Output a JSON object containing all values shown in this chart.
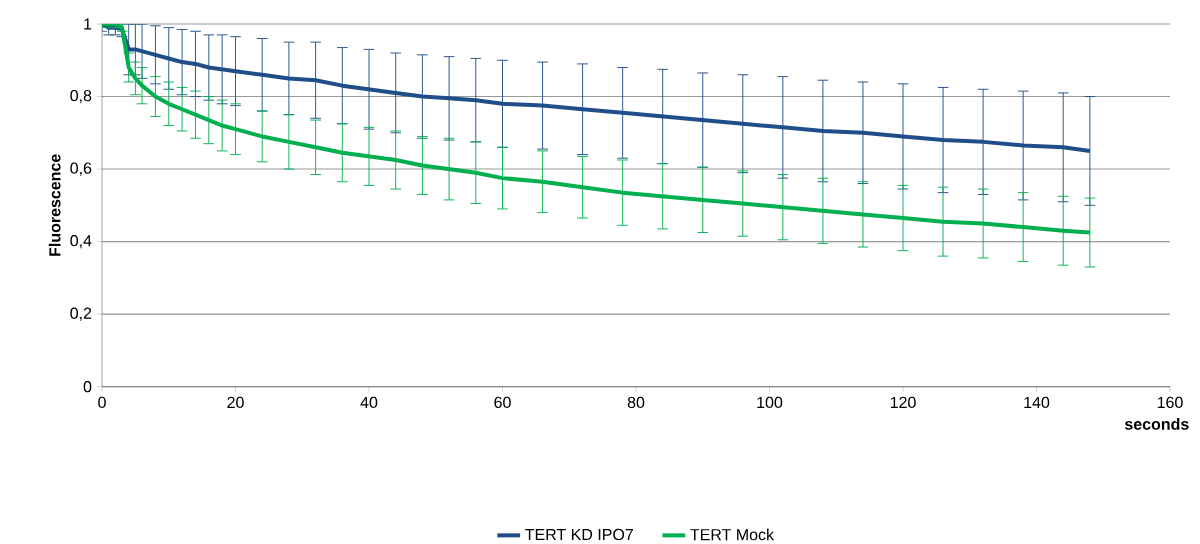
{
  "chart_data": {
    "type": "line",
    "xlabel": "seconds",
    "ylabel": "Fluorescence",
    "xlim": [
      0,
      160
    ],
    "ylim": [
      0,
      1
    ],
    "xticks": [
      0,
      20,
      40,
      60,
      80,
      100,
      120,
      140,
      160
    ],
    "yticks": [
      0,
      {
        "value": 0.2,
        "label": "0,2"
      },
      {
        "value": 0.4,
        "label": "0,4"
      },
      {
        "value": 0.6,
        "label": "0,6"
      },
      {
        "value": 0.8,
        "label": "0,8"
      },
      1
    ],
    "grid": "y",
    "legend": "bottom",
    "x": [
      0,
      1,
      2,
      3,
      4,
      5,
      6,
      8,
      10,
      12,
      14,
      16,
      18,
      20,
      24,
      28,
      32,
      36,
      40,
      44,
      48,
      52,
      56,
      60,
      66,
      72,
      78,
      84,
      90,
      96,
      102,
      108,
      114,
      120,
      126,
      132,
      138,
      144,
      148
    ],
    "series": [
      {
        "name": "TERT KD IPO7",
        "color": "#1f4e89",
        "values": [
          1,
          0.99,
          0.99,
          0.985,
          0.93,
          0.93,
          0.925,
          0.915,
          0.905,
          0.895,
          0.89,
          0.88,
          0.875,
          0.87,
          0.86,
          0.85,
          0.845,
          0.83,
          0.82,
          0.81,
          0.8,
          0.795,
          0.79,
          0.78,
          0.775,
          0.765,
          0.755,
          0.745,
          0.735,
          0.725,
          0.715,
          0.705,
          0.7,
          0.69,
          0.68,
          0.675,
          0.665,
          0.66,
          0.65
        ],
        "errors": [
          0.02,
          0.02,
          0.02,
          0.02,
          0.07,
          0.07,
          0.075,
          0.08,
          0.085,
          0.09,
          0.09,
          0.09,
          0.095,
          0.095,
          0.1,
          0.1,
          0.105,
          0.105,
          0.11,
          0.11,
          0.115,
          0.115,
          0.115,
          0.12,
          0.12,
          0.125,
          0.125,
          0.13,
          0.13,
          0.135,
          0.14,
          0.14,
          0.14,
          0.145,
          0.145,
          0.145,
          0.15,
          0.15,
          0.15
        ]
      },
      {
        "name": "TERT Mock",
        "color": "#00b050",
        "values": [
          1,
          1,
          1,
          0.99,
          0.88,
          0.85,
          0.83,
          0.8,
          0.78,
          0.765,
          0.75,
          0.735,
          0.72,
          0.71,
          0.69,
          0.675,
          0.66,
          0.645,
          0.635,
          0.625,
          0.61,
          0.6,
          0.59,
          0.575,
          0.565,
          0.55,
          0.535,
          0.525,
          0.515,
          0.505,
          0.495,
          0.485,
          0.475,
          0.465,
          0.455,
          0.45,
          0.44,
          0.43,
          0.425
        ],
        "errors": [
          0.01,
          0.01,
          0.01,
          0.01,
          0.04,
          0.045,
          0.05,
          0.055,
          0.06,
          0.06,
          0.065,
          0.065,
          0.07,
          0.07,
          0.07,
          0.075,
          0.075,
          0.08,
          0.08,
          0.08,
          0.08,
          0.085,
          0.085,
          0.085,
          0.085,
          0.085,
          0.09,
          0.09,
          0.09,
          0.09,
          0.09,
          0.09,
          0.09,
          0.09,
          0.095,
          0.095,
          0.095,
          0.095,
          0.095
        ]
      }
    ]
  }
}
